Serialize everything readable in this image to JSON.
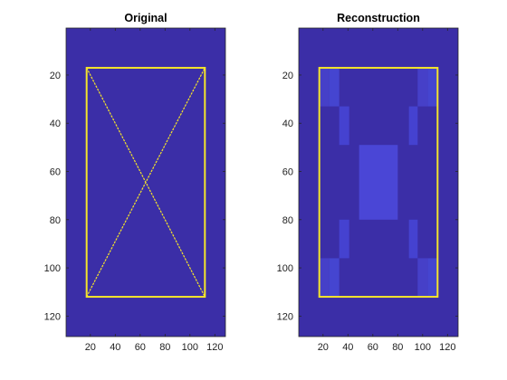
{
  "chart_data": [
    {
      "type": "heatmap",
      "title": "Original",
      "xlabel": "",
      "ylabel": "",
      "xlim": [
        0.5,
        128.5
      ],
      "ylim": [
        0.5,
        128.5
      ],
      "y_reversed": true,
      "x_ticks": [
        20,
        40,
        60,
        80,
        100,
        120
      ],
      "y_ticks": [
        20,
        40,
        60,
        80,
        100,
        120
      ],
      "background_color": "#3b2ea7",
      "shapes": [
        {
          "kind": "rectangle",
          "x": [
            17,
            112
          ],
          "y": [
            17,
            112
          ],
          "color": "#f5e52a",
          "width": 2
        },
        {
          "kind": "segment",
          "from": [
            17,
            112
          ],
          "to": [
            112,
            17
          ],
          "color": "#f5e52a",
          "width": 1.2,
          "style": "dashed"
        },
        {
          "kind": "segment",
          "from": [
            17,
            17
          ],
          "to": [
            112,
            112
          ],
          "color": "#f5e52a",
          "width": 1.2,
          "style": "dashed"
        }
      ]
    },
    {
      "type": "heatmap",
      "title": "Reconstruction",
      "xlabel": "",
      "ylabel": "",
      "xlim": [
        0.5,
        128.5
      ],
      "ylim": [
        0.5,
        128.5
      ],
      "y_reversed": true,
      "x_ticks": [
        20,
        40,
        60,
        80,
        100,
        120
      ],
      "y_ticks": [
        20,
        40,
        60,
        80,
        100,
        120
      ],
      "background_color": "#3b2ea7",
      "blocks": [
        {
          "x": [
            17,
            25
          ],
          "y": [
            17,
            33
          ],
          "color": "#4640c8"
        },
        {
          "x": [
            25,
            33
          ],
          "y": [
            17,
            33
          ],
          "color": "#4545d0"
        },
        {
          "x": [
            104,
            112
          ],
          "y": [
            17,
            33
          ],
          "color": "#4545d0"
        },
        {
          "x": [
            96,
            104
          ],
          "y": [
            17,
            33
          ],
          "color": "#4640c8"
        },
        {
          "x": [
            33,
            41
          ],
          "y": [
            33,
            49
          ],
          "color": "#4542d0"
        },
        {
          "x": [
            89,
            96
          ],
          "y": [
            33,
            49
          ],
          "color": "#4542d0"
        },
        {
          "x": [
            49,
            80
          ],
          "y": [
            49,
            80
          ],
          "color": "#4a46d6"
        },
        {
          "x": [
            33,
            41
          ],
          "y": [
            80,
            96
          ],
          "color": "#4542d0"
        },
        {
          "x": [
            89,
            96
          ],
          "y": [
            80,
            96
          ],
          "color": "#4542d0"
        },
        {
          "x": [
            17,
            25
          ],
          "y": [
            96,
            112
          ],
          "color": "#4640c8"
        },
        {
          "x": [
            25,
            33
          ],
          "y": [
            96,
            112
          ],
          "color": "#4545d0"
        },
        {
          "x": [
            96,
            104
          ],
          "y": [
            96,
            112
          ],
          "color": "#4640c8"
        },
        {
          "x": [
            104,
            112
          ],
          "y": [
            96,
            112
          ],
          "color": "#4545d0"
        }
      ],
      "shapes": [
        {
          "kind": "rectangle",
          "x": [
            17,
            112
          ],
          "y": [
            17,
            112
          ],
          "color": "#f5e52a",
          "width": 2
        }
      ]
    }
  ]
}
